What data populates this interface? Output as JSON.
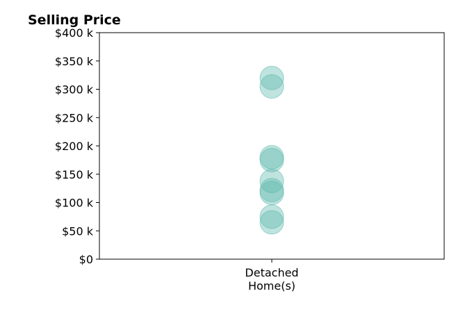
{
  "chart_data": {
    "type": "scatter",
    "title": "Selling Price",
    "xlabel": "",
    "ylabel": "",
    "categories": [
      "Detached\nHome(s)"
    ],
    "ylim": [
      0,
      400000
    ],
    "yticks": [
      {
        "value": 0,
        "label": "$0"
      },
      {
        "value": 50000,
        "label": "$50 k"
      },
      {
        "value": 100000,
        "label": "$100 k"
      },
      {
        "value": 150000,
        "label": "$150 k"
      },
      {
        "value": 200000,
        "label": "$200 k"
      },
      {
        "value": 250000,
        "label": "$250 k"
      },
      {
        "value": 300000,
        "label": "$300 k"
      },
      {
        "value": 350000,
        "label": "$350 k"
      },
      {
        "value": 400000,
        "label": "$400 k"
      }
    ],
    "series": [
      {
        "category": "Detached\nHome(s)",
        "color": "#5fb8ad",
        "values": [
          320000,
          305000,
          180000,
          175000,
          138000,
          122000,
          117000,
          75000,
          65000
        ]
      }
    ],
    "grid": false,
    "legend": "none"
  }
}
